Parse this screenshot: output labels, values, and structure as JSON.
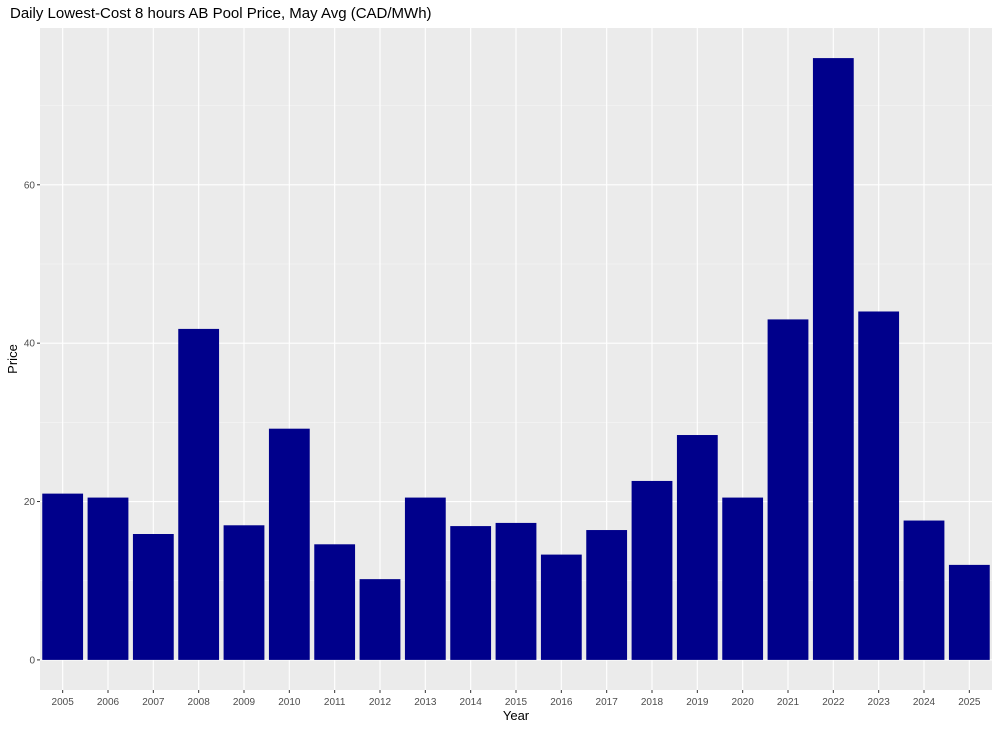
{
  "chart_data": {
    "type": "bar",
    "title": "Daily Lowest-Cost 8 hours AB Pool Price, May Avg (CAD/MWh)",
    "xlabel": "Year",
    "ylabel": "Price",
    "categories": [
      "2005",
      "2006",
      "2007",
      "2008",
      "2009",
      "2010",
      "2011",
      "2012",
      "2013",
      "2014",
      "2015",
      "2016",
      "2017",
      "2018",
      "2019",
      "2020",
      "2021",
      "2022",
      "2023",
      "2024",
      "2025"
    ],
    "values": [
      21.0,
      20.5,
      15.9,
      41.8,
      17.0,
      29.2,
      14.6,
      10.2,
      20.5,
      16.9,
      17.3,
      13.3,
      16.4,
      22.6,
      28.4,
      20.5,
      43.0,
      76.0,
      44.0,
      17.6,
      12.0
    ],
    "yticks": [
      0,
      20,
      40,
      60
    ],
    "ylim": [
      -3.8,
      79.8
    ],
    "grid": true,
    "legend": "none",
    "colors": {
      "bar": "#00008B",
      "panel": "#EBEBEB",
      "grid_major": "#FFFFFF",
      "grid_minor": "#F5F5F5"
    }
  }
}
